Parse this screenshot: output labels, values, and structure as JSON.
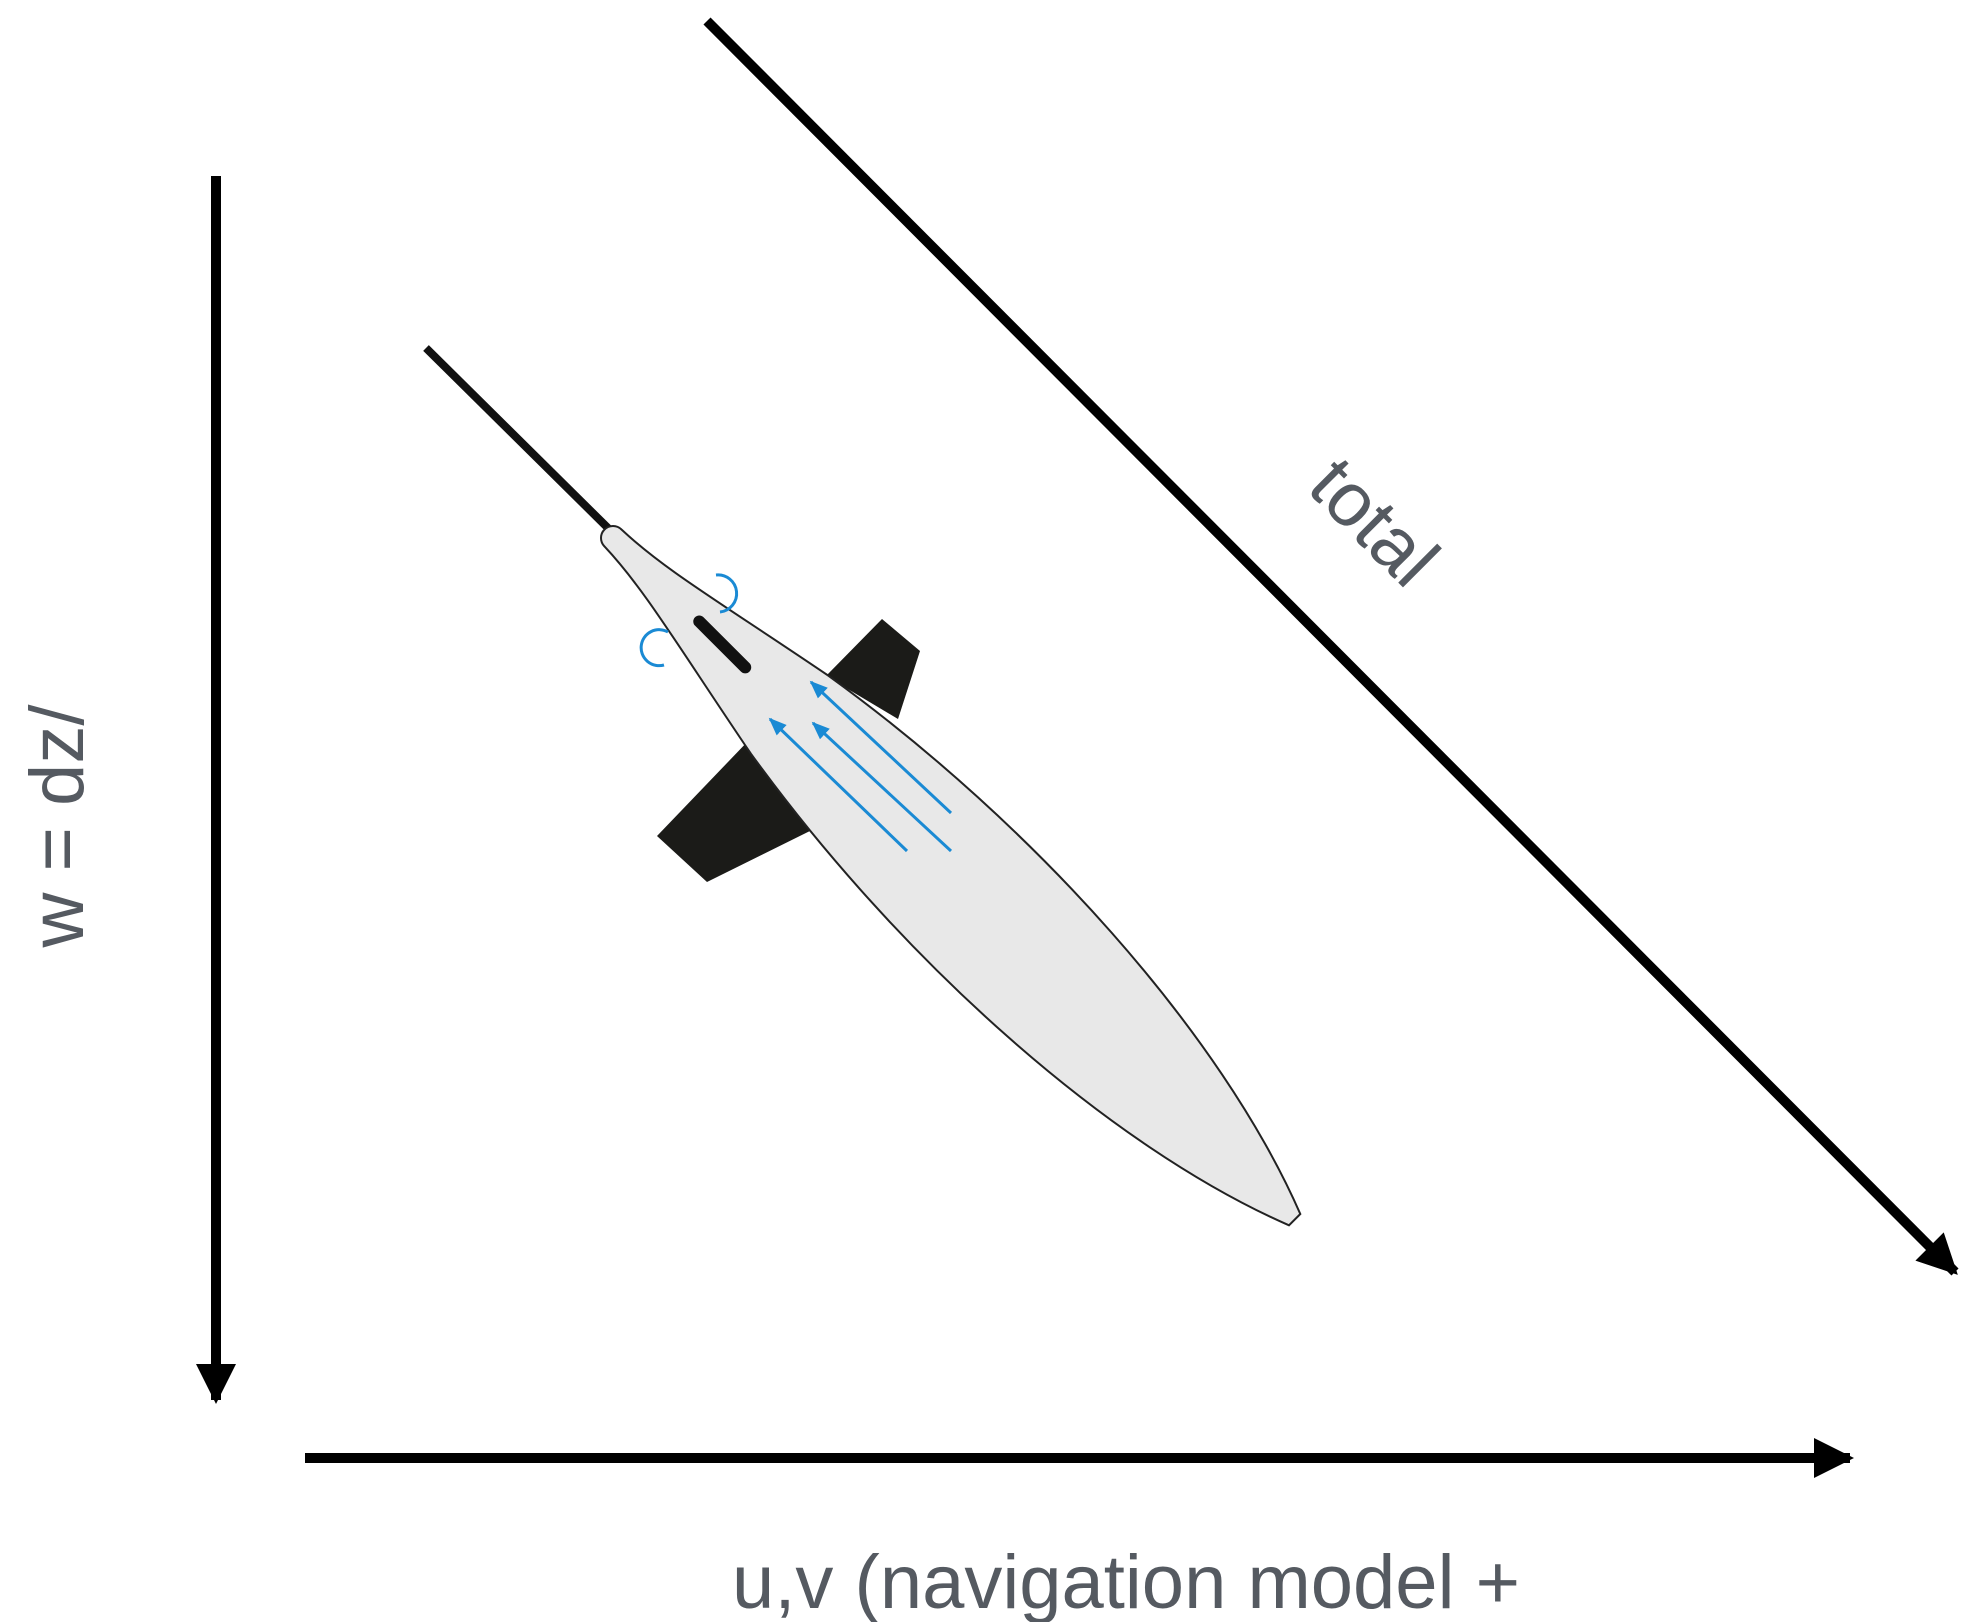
{
  "labels": {
    "total": "total",
    "vertical": "w = dz/",
    "horizontal": "u,v (navigation model +"
  }
}
